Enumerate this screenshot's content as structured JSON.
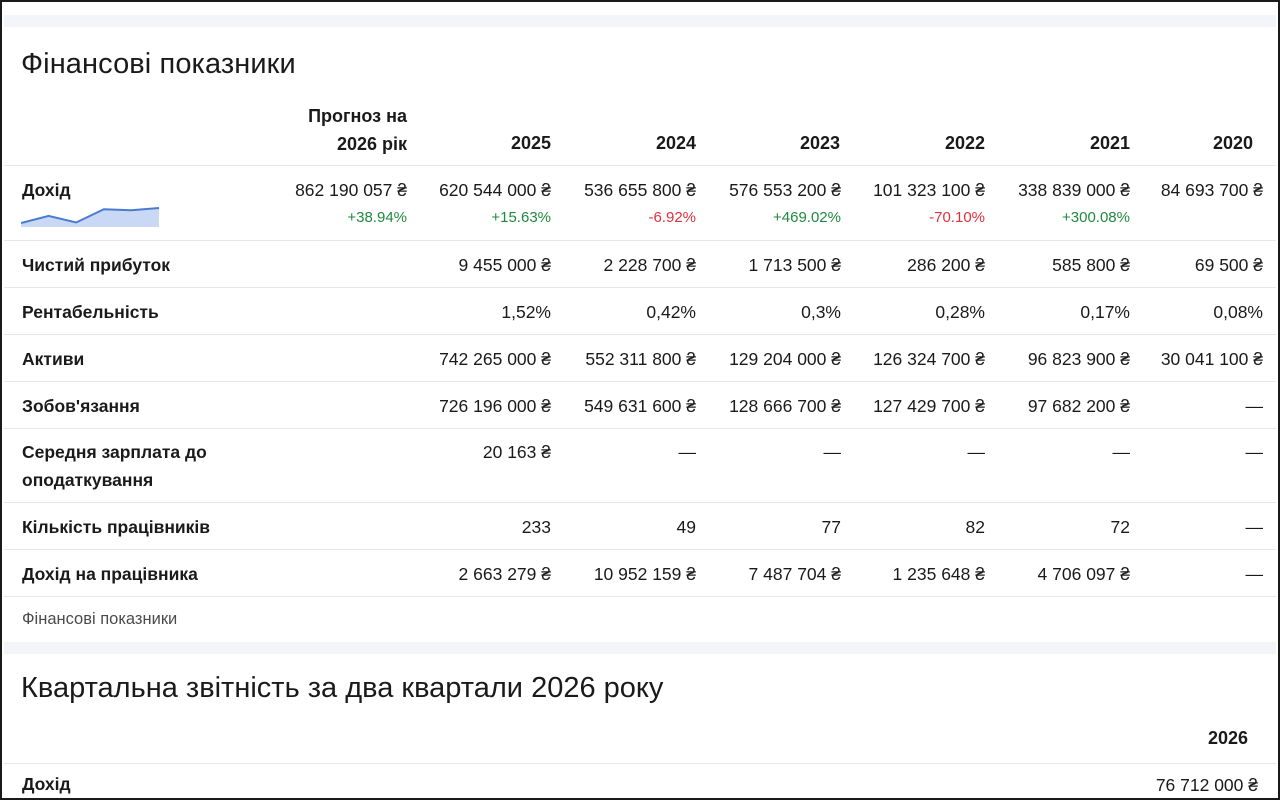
{
  "section1": {
    "title": "Фінансові показники",
    "caption": "Фінансові показники",
    "forecast_header_line1": "Прогноз на",
    "forecast_header_line2": "2026 рік",
    "years": [
      "2025",
      "2024",
      "2023",
      "2022",
      "2021",
      "2020"
    ],
    "rows": [
      {
        "label": "Дохід",
        "forecast": "862 190 057 ₴",
        "forecast_change": "+38.94%",
        "values": [
          "620 544 000 ₴",
          "536 655 800 ₴",
          "576 553 200 ₴",
          "101 323 100 ₴",
          "338 839 000 ₴",
          "84 693 700 ₴"
        ],
        "changes": [
          "+15.63%",
          "-6.92%",
          "+469.02%",
          "-70.10%",
          "+300.08%",
          ""
        ]
      },
      {
        "label": "Чистий прибуток",
        "values": [
          "9 455 000 ₴",
          "2 228 700 ₴",
          "1 713 500 ₴",
          "286 200 ₴",
          "585 800 ₴",
          "69 500 ₴"
        ]
      },
      {
        "label": "Рентабельність",
        "values": [
          "1,52%",
          "0,42%",
          "0,3%",
          "0,28%",
          "0,17%",
          "0,08%"
        ]
      },
      {
        "label": "Активи",
        "values": [
          "742 265 000 ₴",
          "552 311 800 ₴",
          "129 204 000 ₴",
          "126 324 700 ₴",
          "96 823 900 ₴",
          "30 041 100 ₴"
        ]
      },
      {
        "label": "Зобов'язання",
        "values": [
          "726 196 000 ₴",
          "549 631 600 ₴",
          "128 666 700 ₴",
          "127 429 700 ₴",
          "97 682 200 ₴",
          "—"
        ]
      },
      {
        "label_line1": "Середня зарплата до",
        "label_line2": "оподаткування",
        "values": [
          "20 163 ₴",
          "—",
          "—",
          "—",
          "—",
          "—"
        ]
      },
      {
        "label": "Кількість працівників",
        "values": [
          "233",
          "49",
          "77",
          "82",
          "72",
          "—"
        ]
      },
      {
        "label": "Дохід на працівника",
        "values": [
          "2 663 279 ₴",
          "10 952 159 ₴",
          "7 487 704 ₴",
          "1 235 648 ₴",
          "4 706 097 ₴",
          "—"
        ]
      }
    ],
    "sparkline": {
      "values": [
        84693700,
        338839000,
        101323100,
        576553200,
        536655800,
        620544000
      ],
      "color": "#4a7bd0",
      "fill": "#c9d8f4"
    }
  },
  "section2": {
    "title": "Квартальна звітність за два квартали 2026 року",
    "year": "2026",
    "row_label": "Дохід",
    "row_value": "76 712 000 ₴"
  },
  "colors": {
    "positive": "#1f8a3d",
    "negative": "#e0303a",
    "divider": "#e5e7eb",
    "strip": "#f4f5f8"
  }
}
